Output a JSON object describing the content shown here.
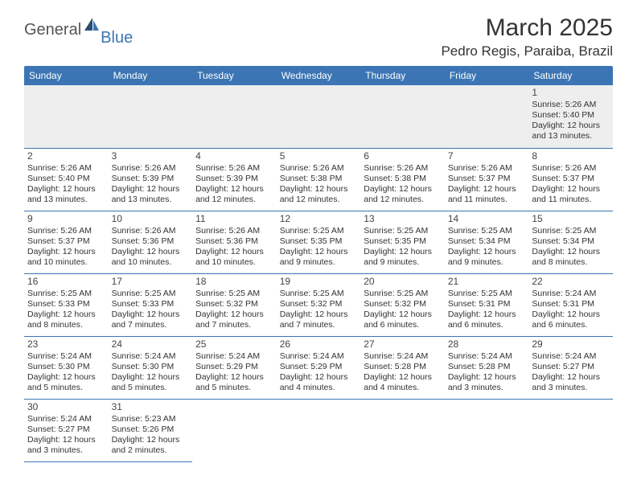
{
  "brand": {
    "main": "General",
    "sub": "Blue"
  },
  "title": "March 2025",
  "location": "Pedro Regis, Paraiba, Brazil",
  "colors": {
    "header_bg": "#3b75b3",
    "header_fg": "#ffffff",
    "empty_row_bg": "#eeeeee",
    "cell_border": "#3b75b3",
    "text": "#333333",
    "logo_blue": "#3b75b3",
    "logo_gray": "#555555"
  },
  "day_headers": [
    "Sunday",
    "Monday",
    "Tuesday",
    "Wednesday",
    "Thursday",
    "Friday",
    "Saturday"
  ],
  "weeks": [
    [
      {
        "day": null
      },
      {
        "day": null
      },
      {
        "day": null
      },
      {
        "day": null
      },
      {
        "day": null
      },
      {
        "day": null
      },
      {
        "day": 1,
        "sunrise": "5:26 AM",
        "sunset": "5:40 PM",
        "daylight": "12 hours and 13 minutes."
      }
    ],
    [
      {
        "day": 2,
        "sunrise": "5:26 AM",
        "sunset": "5:40 PM",
        "daylight": "12 hours and 13 minutes."
      },
      {
        "day": 3,
        "sunrise": "5:26 AM",
        "sunset": "5:39 PM",
        "daylight": "12 hours and 13 minutes."
      },
      {
        "day": 4,
        "sunrise": "5:26 AM",
        "sunset": "5:39 PM",
        "daylight": "12 hours and 12 minutes."
      },
      {
        "day": 5,
        "sunrise": "5:26 AM",
        "sunset": "5:38 PM",
        "daylight": "12 hours and 12 minutes."
      },
      {
        "day": 6,
        "sunrise": "5:26 AM",
        "sunset": "5:38 PM",
        "daylight": "12 hours and 12 minutes."
      },
      {
        "day": 7,
        "sunrise": "5:26 AM",
        "sunset": "5:37 PM",
        "daylight": "12 hours and 11 minutes."
      },
      {
        "day": 8,
        "sunrise": "5:26 AM",
        "sunset": "5:37 PM",
        "daylight": "12 hours and 11 minutes."
      }
    ],
    [
      {
        "day": 9,
        "sunrise": "5:26 AM",
        "sunset": "5:37 PM",
        "daylight": "12 hours and 10 minutes."
      },
      {
        "day": 10,
        "sunrise": "5:26 AM",
        "sunset": "5:36 PM",
        "daylight": "12 hours and 10 minutes."
      },
      {
        "day": 11,
        "sunrise": "5:26 AM",
        "sunset": "5:36 PM",
        "daylight": "12 hours and 10 minutes."
      },
      {
        "day": 12,
        "sunrise": "5:25 AM",
        "sunset": "5:35 PM",
        "daylight": "12 hours and 9 minutes."
      },
      {
        "day": 13,
        "sunrise": "5:25 AM",
        "sunset": "5:35 PM",
        "daylight": "12 hours and 9 minutes."
      },
      {
        "day": 14,
        "sunrise": "5:25 AM",
        "sunset": "5:34 PM",
        "daylight": "12 hours and 9 minutes."
      },
      {
        "day": 15,
        "sunrise": "5:25 AM",
        "sunset": "5:34 PM",
        "daylight": "12 hours and 8 minutes."
      }
    ],
    [
      {
        "day": 16,
        "sunrise": "5:25 AM",
        "sunset": "5:33 PM",
        "daylight": "12 hours and 8 minutes."
      },
      {
        "day": 17,
        "sunrise": "5:25 AM",
        "sunset": "5:33 PM",
        "daylight": "12 hours and 7 minutes."
      },
      {
        "day": 18,
        "sunrise": "5:25 AM",
        "sunset": "5:32 PM",
        "daylight": "12 hours and 7 minutes."
      },
      {
        "day": 19,
        "sunrise": "5:25 AM",
        "sunset": "5:32 PM",
        "daylight": "12 hours and 7 minutes."
      },
      {
        "day": 20,
        "sunrise": "5:25 AM",
        "sunset": "5:32 PM",
        "daylight": "12 hours and 6 minutes."
      },
      {
        "day": 21,
        "sunrise": "5:25 AM",
        "sunset": "5:31 PM",
        "daylight": "12 hours and 6 minutes."
      },
      {
        "day": 22,
        "sunrise": "5:24 AM",
        "sunset": "5:31 PM",
        "daylight": "12 hours and 6 minutes."
      }
    ],
    [
      {
        "day": 23,
        "sunrise": "5:24 AM",
        "sunset": "5:30 PM",
        "daylight": "12 hours and 5 minutes."
      },
      {
        "day": 24,
        "sunrise": "5:24 AM",
        "sunset": "5:30 PM",
        "daylight": "12 hours and 5 minutes."
      },
      {
        "day": 25,
        "sunrise": "5:24 AM",
        "sunset": "5:29 PM",
        "daylight": "12 hours and 5 minutes."
      },
      {
        "day": 26,
        "sunrise": "5:24 AM",
        "sunset": "5:29 PM",
        "daylight": "12 hours and 4 minutes."
      },
      {
        "day": 27,
        "sunrise": "5:24 AM",
        "sunset": "5:28 PM",
        "daylight": "12 hours and 4 minutes."
      },
      {
        "day": 28,
        "sunrise": "5:24 AM",
        "sunset": "5:28 PM",
        "daylight": "12 hours and 3 minutes."
      },
      {
        "day": 29,
        "sunrise": "5:24 AM",
        "sunset": "5:27 PM",
        "daylight": "12 hours and 3 minutes."
      }
    ],
    [
      {
        "day": 30,
        "sunrise": "5:24 AM",
        "sunset": "5:27 PM",
        "daylight": "12 hours and 3 minutes."
      },
      {
        "day": 31,
        "sunrise": "5:23 AM",
        "sunset": "5:26 PM",
        "daylight": "12 hours and 2 minutes."
      },
      {
        "day": null,
        "trailing": true
      },
      {
        "day": null,
        "trailing": true
      },
      {
        "day": null,
        "trailing": true
      },
      {
        "day": null,
        "trailing": true
      },
      {
        "day": null,
        "trailing": true
      }
    ]
  ],
  "labels": {
    "sunrise": "Sunrise: ",
    "sunset": "Sunset: ",
    "daylight": "Daylight: "
  }
}
